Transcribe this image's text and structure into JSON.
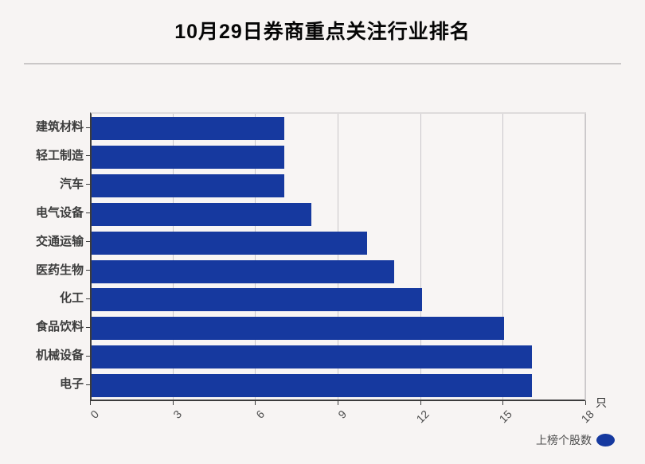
{
  "header": {
    "title": "10月29日券商重点关注行业排名"
  },
  "axis": {
    "unit_label": "只"
  },
  "legend": {
    "label": "上榜个股数"
  },
  "colors": {
    "bar": "#16399f",
    "background": "#f7f4f3",
    "grid": "#c9c6c9"
  },
  "chart_data": {
    "type": "bar",
    "orientation": "horizontal",
    "title": "10月29日券商重点关注行业排名",
    "categories": [
      "建筑材料",
      "轻工制造",
      "汽车",
      "电气设备",
      "交通运输",
      "医药生物",
      "化工",
      "食品饮料",
      "机械设备",
      "电子"
    ],
    "values": [
      7,
      7,
      7,
      8,
      10,
      11,
      12,
      15,
      16,
      16
    ],
    "series_name": "上榜个股数",
    "xlabel": "",
    "ylabel": "",
    "x_unit": "只",
    "x_ticks": [
      0,
      3,
      6,
      9,
      12,
      15,
      18
    ],
    "xlim": [
      0,
      18
    ],
    "grid": true,
    "grid_axis": "x",
    "legend_position": "bottom-right",
    "bar_color": "#16399f"
  }
}
